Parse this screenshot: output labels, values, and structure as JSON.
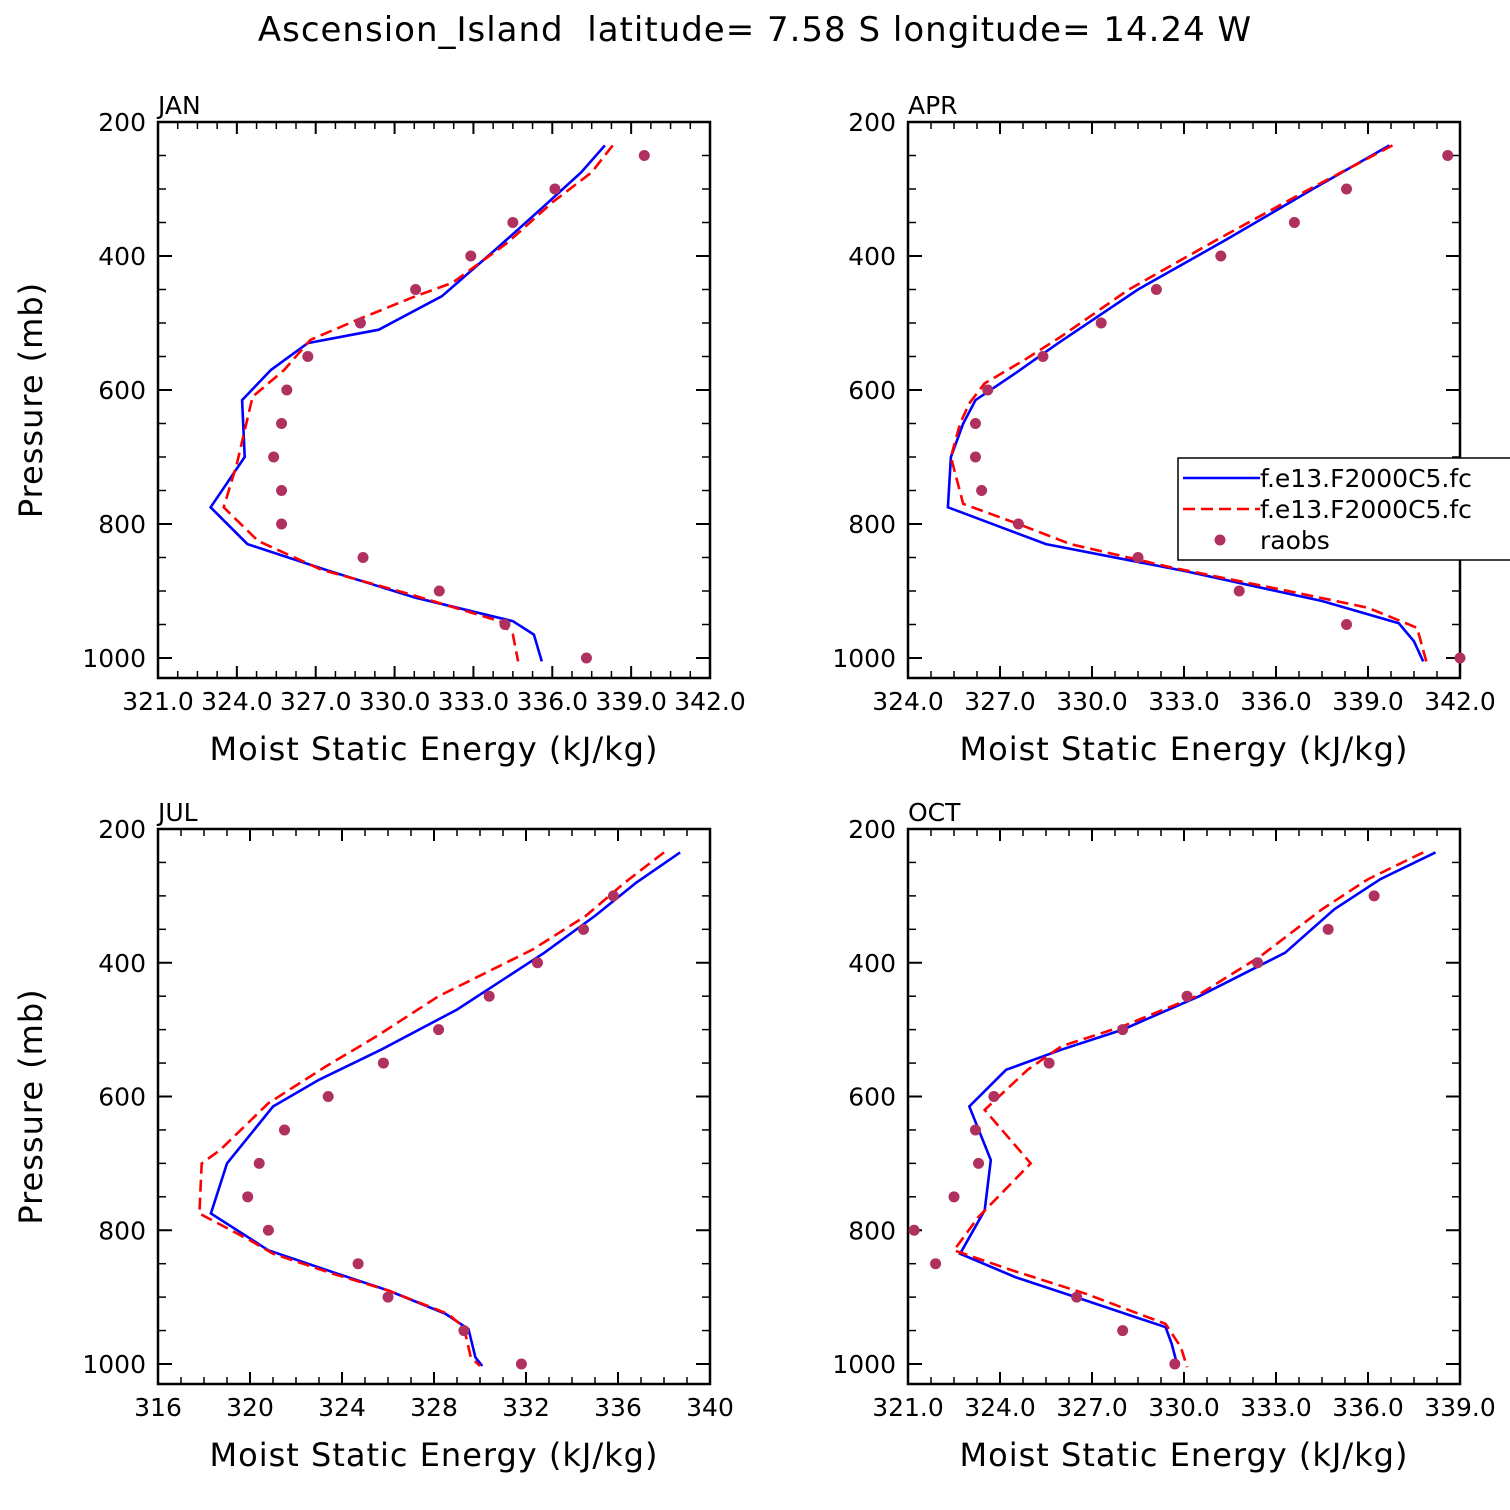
{
  "title": "Ascension_Island  latitude= 7.58 S longitude= 14.24 W",
  "colors": {
    "model1": "#0000ff",
    "model2": "#ff0000",
    "obs": "#b03060"
  },
  "legend": {
    "entries": [
      {
        "label": "f.e13.F2000C5.fc",
        "style": "solid",
        "color": "#0000ff"
      },
      {
        "label": "f.e13.F2000C5.fc",
        "style": "dashed",
        "color": "#ff0000"
      },
      {
        "label": "raobs",
        "style": "marker",
        "color": "#b03060"
      }
    ]
  },
  "chart_data": [
    {
      "type": "line",
      "panel_label": "JAN",
      "xlabel": "Moist Static Energy (kJ/kg)",
      "ylabel": "Pressure (mb)",
      "xlim": [
        321.0,
        342.0
      ],
      "ylim": [
        1000,
        200
      ],
      "y_inverted": true,
      "xticks": [
        "321.0",
        "324.0",
        "327.0",
        "330.0",
        "333.0",
        "336.0",
        "339.0",
        "342.0"
      ],
      "yticks": [
        "200",
        "400",
        "600",
        "800",
        "1000"
      ],
      "series": [
        {
          "name": "f.e13.F2000C5.fc",
          "style": "solid",
          "points": [
            [
              338.0,
              235
            ],
            [
              337.1,
              275
            ],
            [
              335.7,
              325
            ],
            [
              334.0,
              385
            ],
            [
              331.8,
              460
            ],
            [
              329.4,
              510
            ],
            [
              326.7,
              530
            ],
            [
              325.3,
              570
            ],
            [
              324.2,
              615
            ],
            [
              324.3,
              700
            ],
            [
              323.0,
              775
            ],
            [
              324.4,
              830
            ],
            [
              327.5,
              870
            ],
            [
              330.8,
              910
            ],
            [
              334.5,
              945
            ],
            [
              335.3,
              965
            ],
            [
              335.6,
              1005
            ]
          ]
        },
        {
          "name": "f.e13.F2000C5.fc",
          "style": "dashed",
          "points": [
            [
              338.3,
              235
            ],
            [
              337.5,
              275
            ],
            [
              336.0,
              320
            ],
            [
              334.3,
              380
            ],
            [
              332.2,
              440
            ],
            [
              330.8,
              460
            ],
            [
              328.6,
              495
            ],
            [
              326.8,
              525
            ],
            [
              325.8,
              570
            ],
            [
              324.6,
              610
            ],
            [
              324.0,
              710
            ],
            [
              323.5,
              775
            ],
            [
              324.8,
              825
            ],
            [
              327.2,
              868
            ],
            [
              330.6,
              905
            ],
            [
              334.0,
              945
            ],
            [
              334.5,
              965
            ],
            [
              334.7,
              1005
            ]
          ]
        },
        {
          "name": "raobs",
          "style": "marker",
          "points": [
            [
              339.5,
              250
            ],
            [
              336.1,
              300
            ],
            [
              334.5,
              350
            ],
            [
              332.9,
              400
            ],
            [
              330.8,
              450
            ],
            [
              328.7,
              500
            ],
            [
              326.7,
              550
            ],
            [
              325.9,
              600
            ],
            [
              325.7,
              650
            ],
            [
              325.4,
              700
            ],
            [
              325.7,
              750
            ],
            [
              325.7,
              800
            ],
            [
              328.8,
              850
            ],
            [
              331.7,
              900
            ],
            [
              334.2,
              950
            ],
            [
              337.3,
              1000
            ]
          ]
        }
      ]
    },
    {
      "type": "line",
      "panel_label": "APR",
      "xlabel": "Moist Static Energy (kJ/kg)",
      "ylabel": "",
      "xlim": [
        324.0,
        342.0
      ],
      "ylim": [
        1000,
        200
      ],
      "y_inverted": true,
      "xticks": [
        "324.0",
        "327.0",
        "330.0",
        "333.0",
        "336.0",
        "339.0",
        "342.0"
      ],
      "yticks": [
        "200",
        "400",
        "600",
        "800",
        "1000"
      ],
      "series": [
        {
          "name": "f.e13.F2000C5.fc",
          "style": "solid",
          "points": [
            [
              339.7,
              235
            ],
            [
              337.2,
              300
            ],
            [
              334.4,
              375
            ],
            [
              331.5,
              450
            ],
            [
              328.9,
              530
            ],
            [
              327.5,
              575
            ],
            [
              326.2,
              615
            ],
            [
              325.8,
              650
            ],
            [
              325.4,
              700
            ],
            [
              325.3,
              775
            ],
            [
              328.5,
              830
            ],
            [
              333.0,
              870
            ],
            [
              337.5,
              915
            ],
            [
              340.0,
              948
            ],
            [
              340.5,
              975
            ],
            [
              340.8,
              1005
            ]
          ]
        },
        {
          "name": "f.e13.F2000C5.fc",
          "style": "dashed",
          "points": [
            [
              339.8,
              235
            ],
            [
              337.1,
              300
            ],
            [
              334.1,
              375
            ],
            [
              331.2,
              450
            ],
            [
              329.0,
              520
            ],
            [
              327.8,
              555
            ],
            [
              326.5,
              590
            ],
            [
              326.0,
              620
            ],
            [
              325.7,
              650
            ],
            [
              325.4,
              700
            ],
            [
              325.8,
              770
            ],
            [
              327.6,
              800
            ],
            [
              329.3,
              830
            ],
            [
              332.6,
              865
            ],
            [
              336.4,
              900
            ],
            [
              339.0,
              925
            ],
            [
              340.6,
              955
            ],
            [
              340.9,
              1005
            ]
          ]
        },
        {
          "name": "raobs",
          "style": "marker",
          "points": [
            [
              341.6,
              250
            ],
            [
              338.3,
              300
            ],
            [
              336.6,
              350
            ],
            [
              334.2,
              400
            ],
            [
              332.1,
              450
            ],
            [
              330.3,
              500
            ],
            [
              328.4,
              550
            ],
            [
              326.6,
              600
            ],
            [
              326.2,
              650
            ],
            [
              326.2,
              700
            ],
            [
              326.4,
              750
            ],
            [
              327.6,
              800
            ],
            [
              331.5,
              850
            ],
            [
              334.8,
              900
            ],
            [
              338.3,
              950
            ],
            [
              342.0,
              1000
            ]
          ]
        }
      ]
    },
    {
      "type": "line",
      "panel_label": "JUL",
      "xlabel": "Moist Static Energy (kJ/kg)",
      "ylabel": "Pressure (mb)",
      "xlim": [
        316,
        340
      ],
      "ylim": [
        1000,
        200
      ],
      "y_inverted": true,
      "xticks": [
        "316",
        "320",
        "324",
        "328",
        "332",
        "336",
        "340"
      ],
      "yticks": [
        "200",
        "400",
        "600",
        "800",
        "1000"
      ],
      "series": [
        {
          "name": "f.e13.F2000C5.fc",
          "style": "solid",
          "points": [
            [
              338.7,
              235
            ],
            [
              336.8,
              280
            ],
            [
              335.0,
              330
            ],
            [
              332.8,
              385
            ],
            [
              329.0,
              470
            ],
            [
              325.7,
              530
            ],
            [
              323.0,
              575
            ],
            [
              321.0,
              615
            ],
            [
              319.0,
              700
            ],
            [
              318.3,
              775
            ],
            [
              320.8,
              830
            ],
            [
              323.8,
              865
            ],
            [
              326.0,
              890
            ],
            [
              328.5,
              925
            ],
            [
              329.5,
              948
            ],
            [
              329.8,
              990
            ],
            [
              330.1,
              1003
            ]
          ]
        },
        {
          "name": "f.e13.F2000C5.fc",
          "style": "dashed",
          "points": [
            [
              338.0,
              235
            ],
            [
              336.3,
              280
            ],
            [
              334.6,
              330
            ],
            [
              332.3,
              380
            ],
            [
              328.2,
              450
            ],
            [
              325.5,
              510
            ],
            [
              323.3,
              555
            ],
            [
              320.8,
              610
            ],
            [
              318.7,
              680
            ],
            [
              317.9,
              700
            ],
            [
              317.8,
              775
            ],
            [
              320.0,
              815
            ],
            [
              321.0,
              835
            ],
            [
              323.6,
              865
            ],
            [
              326.0,
              890
            ],
            [
              328.6,
              925
            ],
            [
              329.3,
              945
            ],
            [
              329.6,
              990
            ],
            [
              330.0,
              1003
            ]
          ]
        },
        {
          "name": "raobs",
          "style": "marker",
          "points": [
            [
              335.8,
              300
            ],
            [
              334.5,
              350
            ],
            [
              332.5,
              400
            ],
            [
              330.4,
              450
            ],
            [
              328.2,
              500
            ],
            [
              325.8,
              550
            ],
            [
              323.4,
              600
            ],
            [
              321.5,
              650
            ],
            [
              320.4,
              700
            ],
            [
              319.9,
              750
            ],
            [
              320.8,
              800
            ],
            [
              324.7,
              850
            ],
            [
              326.0,
              900
            ],
            [
              329.3,
              950
            ],
            [
              331.8,
              1000
            ]
          ]
        }
      ]
    },
    {
      "type": "line",
      "panel_label": "OCT",
      "xlabel": "Moist Static Energy (kJ/kg)",
      "ylabel": "",
      "xlim": [
        321.0,
        339.0
      ],
      "ylim": [
        1000,
        200
      ],
      "y_inverted": true,
      "xticks": [
        "321.0",
        "324.0",
        "327.0",
        "330.0",
        "333.0",
        "336.0",
        "339.0"
      ],
      "yticks": [
        "200",
        "400",
        "600",
        "800",
        "1000"
      ],
      "series": [
        {
          "name": "f.e13.F2000C5.fc",
          "style": "solid",
          "points": [
            [
              338.2,
              235
            ],
            [
              336.4,
              275
            ],
            [
              334.9,
              320
            ],
            [
              333.3,
              385
            ],
            [
              330.5,
              450
            ],
            [
              328.0,
              500
            ],
            [
              326.0,
              530
            ],
            [
              324.2,
              560
            ],
            [
              323.0,
              615
            ],
            [
              323.7,
              695
            ],
            [
              323.5,
              770
            ],
            [
              322.7,
              835
            ],
            [
              324.5,
              870
            ],
            [
              326.8,
              905
            ],
            [
              329.4,
              945
            ],
            [
              329.6,
              970
            ],
            [
              329.8,
              1005
            ]
          ]
        },
        {
          "name": "f.e13.F2000C5.fc",
          "style": "dashed",
          "points": [
            [
              337.8,
              235
            ],
            [
              336.0,
              275
            ],
            [
              334.5,
              320
            ],
            [
              332.5,
              390
            ],
            [
              330.4,
              450
            ],
            [
              328.0,
              495
            ],
            [
              326.0,
              525
            ],
            [
              324.9,
              560
            ],
            [
              323.5,
              620
            ],
            [
              325.0,
              700
            ],
            [
              323.3,
              780
            ],
            [
              322.5,
              830
            ],
            [
              324.4,
              860
            ],
            [
              326.8,
              895
            ],
            [
              329.4,
              940
            ],
            [
              329.9,
              975
            ],
            [
              330.1,
              1005
            ]
          ]
        },
        {
          "name": "raobs",
          "style": "marker",
          "points": [
            [
              336.2,
              300
            ],
            [
              334.7,
              350
            ],
            [
              332.4,
              400
            ],
            [
              330.1,
              450
            ],
            [
              328.0,
              500
            ],
            [
              325.6,
              550
            ],
            [
              323.8,
              600
            ],
            [
              323.2,
              650
            ],
            [
              323.3,
              700
            ],
            [
              322.5,
              750
            ],
            [
              321.2,
              800
            ],
            [
              321.9,
              850
            ],
            [
              326.5,
              900
            ],
            [
              328.0,
              950
            ],
            [
              329.7,
              1000
            ]
          ]
        }
      ]
    }
  ]
}
